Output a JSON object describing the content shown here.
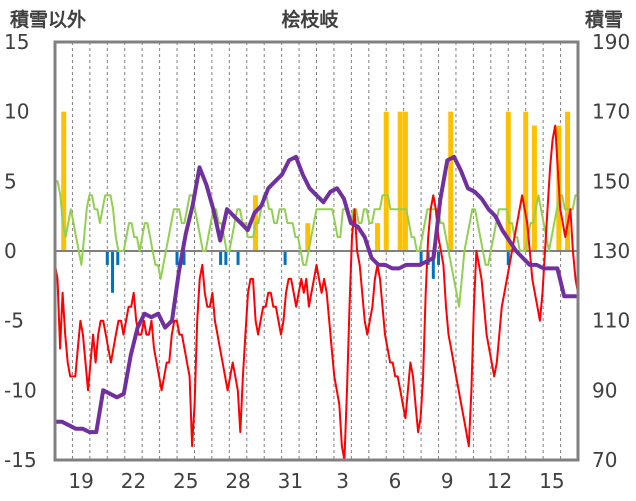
{
  "chart_data": {
    "type": "line",
    "title": "桧枝岐",
    "left_axis_label": "積雪以外",
    "right_axis_label": "積雪",
    "x_tick_labels": [
      "19",
      "22",
      "25",
      "28",
      "31",
      "3",
      "6",
      "9",
      "12",
      "15"
    ],
    "left_axis": {
      "min": -15,
      "max": 15,
      "ticks": [
        -15,
        -10,
        -5,
        0,
        5,
        10,
        15
      ]
    },
    "right_axis": {
      "min": 70,
      "max": 190,
      "ticks": [
        70,
        90,
        110,
        130,
        150,
        170,
        190
      ]
    },
    "grid": "vertical-dashed",
    "n_days": 30,
    "colors": {
      "snow_depth": "#7030a0",
      "temperature_min": "#ff0000",
      "temperature_hourly": "#92d050",
      "snowfall_bars": "#ffc000",
      "negative_bars": "#0070c0",
      "frame": "#808080"
    },
    "series": [
      {
        "key": "temperature_min",
        "values": [
          -1,
          -2,
          -7,
          -3,
          -6,
          -8,
          -9,
          -9,
          -9,
          -7,
          -5,
          -6,
          -8,
          -10,
          -8,
          -6,
          -8,
          -6,
          -5,
          -5,
          -6,
          -7,
          -8,
          -7,
          -6,
          -5,
          -5,
          -6,
          -5,
          -4,
          -4,
          -3,
          -5,
          -6,
          -6,
          -5,
          -6,
          -6,
          -5,
          -7,
          -8,
          -9,
          -10,
          -9,
          -8,
          -8,
          -6,
          -5,
          -5,
          -6,
          -6,
          -7,
          -8,
          -9,
          -14,
          -11,
          -5,
          -2,
          -1,
          -3,
          -4,
          -4,
          -3,
          -5,
          -6,
          -7,
          -8,
          -9,
          -10,
          -9,
          -8,
          -9,
          -10,
          -13,
          -9,
          -6,
          -3,
          -2,
          -2,
          -5,
          -6,
          -5,
          -4,
          -4,
          -3,
          -3,
          -4,
          -4,
          -5,
          -6,
          -5,
          -3,
          -2,
          -2,
          -3,
          -4,
          -3,
          -2,
          -3,
          -2,
          -4,
          -3,
          -2,
          -1,
          -2,
          -3,
          -2,
          -3,
          -5,
          -7,
          -9,
          -10,
          -11,
          -14,
          -15,
          -10,
          -4,
          1,
          3,
          0,
          -1,
          -3,
          -5,
          -6,
          -5,
          -4,
          -2,
          -1,
          -2,
          -4,
          -6,
          -7,
          -8,
          -8,
          -9,
          -9,
          -10,
          -11,
          -12,
          -10,
          -8,
          -9,
          -11,
          -13,
          -12,
          -9,
          -3,
          1,
          3,
          4,
          3,
          1,
          0,
          -1,
          -4,
          -6,
          -7,
          -8,
          -9,
          -10,
          -11,
          -12,
          -13,
          -14,
          -10,
          -4,
          0,
          -1,
          -2,
          -4,
          -6,
          -7,
          -8,
          -9,
          -8,
          -6,
          -4,
          -3,
          -2,
          -1,
          0,
          1,
          2,
          3,
          4,
          3,
          2,
          0,
          -2,
          -3,
          -4,
          -5,
          -3,
          0,
          3,
          6,
          8,
          9,
          6,
          3,
          2,
          1,
          2,
          3,
          0,
          -2,
          -3
        ]
      },
      {
        "key": "temperature_hourly",
        "values": [
          5,
          5,
          4,
          2,
          1,
          2,
          3,
          2,
          1,
          0,
          -1,
          1,
          3,
          4,
          4,
          3,
          3,
          2,
          3,
          4,
          4,
          4,
          3,
          1,
          0,
          0,
          0,
          1,
          2,
          2,
          1,
          1,
          0,
          1,
          2,
          2,
          1,
          0,
          -1,
          -1,
          -2,
          -1,
          0,
          1,
          2,
          3,
          3,
          3,
          2,
          2,
          3,
          4,
          4,
          3,
          2,
          1,
          0,
          0,
          1,
          2,
          3,
          3,
          2,
          2,
          1,
          0,
          0,
          1,
          2,
          3,
          3,
          2,
          2,
          1,
          1,
          1,
          2,
          2,
          3,
          4,
          4,
          3,
          3,
          2,
          2,
          3,
          3,
          3,
          2,
          2,
          2,
          1,
          1,
          0,
          -1,
          -1,
          0,
          1,
          2,
          3,
          3,
          3,
          3,
          3,
          3,
          3,
          2,
          1,
          1,
          3,
          3,
          3,
          2,
          3,
          3,
          2,
          2,
          3,
          3,
          2,
          2,
          3,
          3,
          3,
          4,
          4,
          4,
          3,
          3,
          3,
          3,
          3,
          3,
          3,
          2,
          1,
          1,
          0,
          0,
          1,
          2,
          3,
          3,
          3,
          3,
          3,
          2,
          2,
          1,
          0,
          -1,
          -2,
          -3,
          -4,
          -2,
          0,
          1,
          2,
          3,
          3,
          2,
          1,
          0,
          -1,
          -1,
          0,
          1,
          2,
          3,
          3,
          3,
          3,
          2,
          2,
          1,
          1,
          0,
          0,
          0,
          1,
          2,
          2,
          3,
          4,
          3,
          2,
          1,
          0,
          1,
          2,
          3,
          4,
          4,
          3,
          3,
          3,
          3,
          4,
          4
        ]
      },
      {
        "key": "snow_depth",
        "values": [
          81,
          81,
          80,
          79,
          79,
          78,
          78,
          90,
          89,
          88,
          89,
          100,
          108,
          112,
          111,
          112,
          108,
          110,
          124,
          135,
          143,
          154,
          149,
          142,
          133,
          142,
          140,
          138,
          136,
          141,
          143,
          148,
          150,
          152,
          156,
          157,
          152,
          148,
          146,
          144,
          147,
          148,
          145,
          138,
          137,
          134,
          128,
          126,
          126,
          125,
          125,
          126,
          126,
          126,
          127,
          128,
          145,
          156,
          157,
          153,
          148,
          147,
          145,
          142,
          140,
          136,
          133,
          130,
          128,
          126,
          126,
          125,
          125,
          125,
          117,
          117,
          117
        ]
      }
    ],
    "snowfall_bars": [
      {
        "day": 0.5,
        "value": 10
      },
      {
        "day": 11.5,
        "value": 4
      },
      {
        "day": 14.5,
        "value": 2
      },
      {
        "day": 18.5,
        "value": 2
      },
      {
        "day": 19.0,
        "value": 10
      },
      {
        "day": 19.8,
        "value": 10
      },
      {
        "day": 20.1,
        "value": 10
      },
      {
        "day": 22.7,
        "value": 10
      },
      {
        "day": 26.0,
        "value": 10
      },
      {
        "day": 27.0,
        "value": 10
      },
      {
        "day": 27.5,
        "value": 9
      },
      {
        "day": 29.4,
        "value": 10
      },
      {
        "day": 28.9,
        "value": 9
      }
    ],
    "negative_bars": [
      {
        "day": 3.0,
        "value": -1
      },
      {
        "day": 3.3,
        "value": -3
      },
      {
        "day": 3.6,
        "value": -1
      },
      {
        "day": 7.0,
        "value": -1
      },
      {
        "day": 7.4,
        "value": -1
      },
      {
        "day": 9.5,
        "value": -1
      },
      {
        "day": 9.8,
        "value": -1
      },
      {
        "day": 10.5,
        "value": -1
      },
      {
        "day": 13.2,
        "value": -1
      },
      {
        "day": 21.0,
        "value": -1
      },
      {
        "day": 21.4,
        "value": -1
      },
      {
        "day": 21.7,
        "value": -2
      },
      {
        "day": 22.0,
        "value": -1
      },
      {
        "day": 26.0,
        "value": -1
      }
    ]
  }
}
